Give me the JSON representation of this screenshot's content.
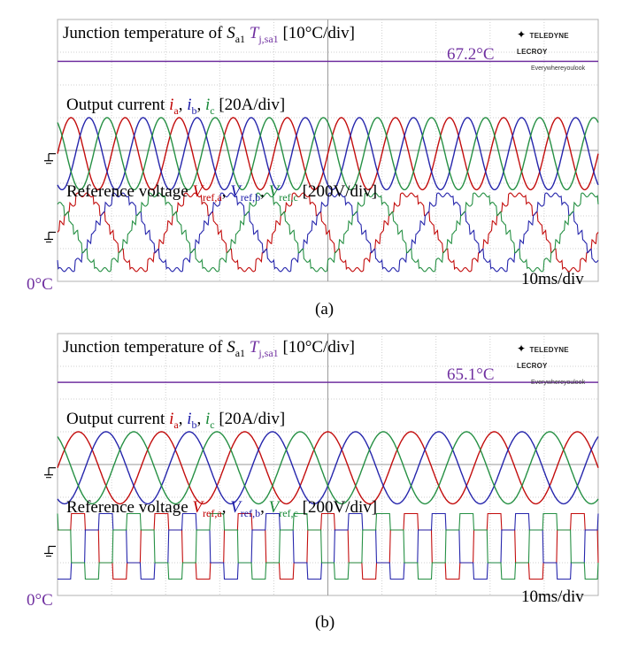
{
  "panels": [
    {
      "id": "a",
      "caption": "(a)",
      "junction_label": {
        "text": "Junction temperature of ",
        "s": "S",
        "s_sub": "a1",
        "t": "T",
        "t_sub": "j,sa1",
        "scale": "[10°C/div]"
      },
      "temp_value": "67.2°C",
      "current_label": {
        "text": "Output current ",
        "ia": "i",
        "ia_sub": "a",
        "ib": "i",
        "ib_sub": "b",
        "ic": "i",
        "ic_sub": "c",
        "scale": "[20A/div]"
      },
      "voltage_label": {
        "text": "Reference voltage ",
        "va": "V",
        "va_sub": "ref,a",
        "vb": "V",
        "vb_sub": "ref,b",
        "vc": "V",
        "vc_sub": "ref,c",
        "scale": "[200V/div]"
      },
      "zero_label": "0°C",
      "time_div": "10ms/div",
      "logo": {
        "line1": "TELEDYNE LECROY",
        "line2": "Everywhereyoulook"
      }
    },
    {
      "id": "b",
      "caption": "(b)",
      "junction_label": {
        "text": "Junction temperature of ",
        "s": "S",
        "s_sub": "a1",
        "t": "T",
        "t_sub": "j,sa1",
        "scale": "[10°C/div]"
      },
      "temp_value": "65.1°C",
      "current_label": {
        "text": "Output current ",
        "ia": "i",
        "ia_sub": "a",
        "ib": "i",
        "ib_sub": "b",
        "ic": "i",
        "ic_sub": "c",
        "scale": "[20A/div]"
      },
      "voltage_label": {
        "text": "Reference voltage ",
        "va": "V",
        "va_sub": "ref,a",
        "vb": "V",
        "vb_sub": "ref,b",
        "vc": "V",
        "vc_sub": "ref,c",
        "scale": "[200V/div]"
      },
      "zero_label": "0°C",
      "time_div": "10ms/div",
      "logo": {
        "line1": "TELEDYNE LECROY",
        "line2": "Everywhereyoulook"
      }
    }
  ],
  "chart_data": [
    {
      "type": "line",
      "panel": "a",
      "x_unit": "ms",
      "x_range": [
        0,
        100
      ],
      "series": [
        {
          "name": "T_j,sa1",
          "color": "#7030a0",
          "constant_value": 67.2,
          "unit": "°C"
        },
        {
          "name": "i_a",
          "color": "#c00000",
          "waveform": "sine",
          "periods": 10,
          "amplitude_div": 1.1,
          "phase_deg": 0
        },
        {
          "name": "i_b",
          "color": "#1a1aa8",
          "waveform": "sine",
          "periods": 10,
          "amplitude_div": 1.1,
          "phase_deg": -120
        },
        {
          "name": "i_c",
          "color": "#1a8a3a",
          "waveform": "sine",
          "periods": 10,
          "amplitude_div": 1.1,
          "phase_deg": 120
        },
        {
          "name": "V_ref,a",
          "color": "#c00000",
          "waveform": "stepped-sine",
          "periods": 5,
          "amplitude_div": 1.2,
          "phase_deg": 0
        },
        {
          "name": "V_ref,b",
          "color": "#1a1aa8",
          "waveform": "stepped-sine",
          "periods": 5,
          "amplitude_div": 1.2,
          "phase_deg": -120
        },
        {
          "name": "V_ref,c",
          "color": "#1a8a3a",
          "waveform": "stepped-sine",
          "periods": 5,
          "amplitude_div": 1.2,
          "phase_deg": 120
        }
      ],
      "grid": true
    },
    {
      "type": "line",
      "panel": "b",
      "x_unit": "ms",
      "x_range": [
        0,
        100
      ],
      "series": [
        {
          "name": "T_j,sa1",
          "color": "#7030a0",
          "constant_value": 65.1,
          "unit": "°C"
        },
        {
          "name": "i_a",
          "color": "#c00000",
          "waveform": "sine",
          "periods": 6.5,
          "amplitude_div": 1.1,
          "phase_deg": 0
        },
        {
          "name": "i_b",
          "color": "#1a1aa8",
          "waveform": "sine",
          "periods": 6.5,
          "amplitude_div": 1.1,
          "phase_deg": -120
        },
        {
          "name": "i_c",
          "color": "#1a8a3a",
          "waveform": "sine",
          "periods": 6.5,
          "amplitude_div": 1.1,
          "phase_deg": 120
        },
        {
          "name": "V_ref,a",
          "color": "#c00000",
          "waveform": "six-step",
          "periods": 6.5,
          "amplitude_div": 1.0,
          "phase_deg": 0
        },
        {
          "name": "V_ref,b",
          "color": "#1a1aa8",
          "waveform": "six-step",
          "periods": 6.5,
          "amplitude_div": 1.0,
          "phase_deg": -120
        },
        {
          "name": "V_ref,c",
          "color": "#1a8a3a",
          "waveform": "six-step",
          "periods": 6.5,
          "amplitude_div": 1.0,
          "phase_deg": 120
        }
      ],
      "grid": true
    }
  ]
}
